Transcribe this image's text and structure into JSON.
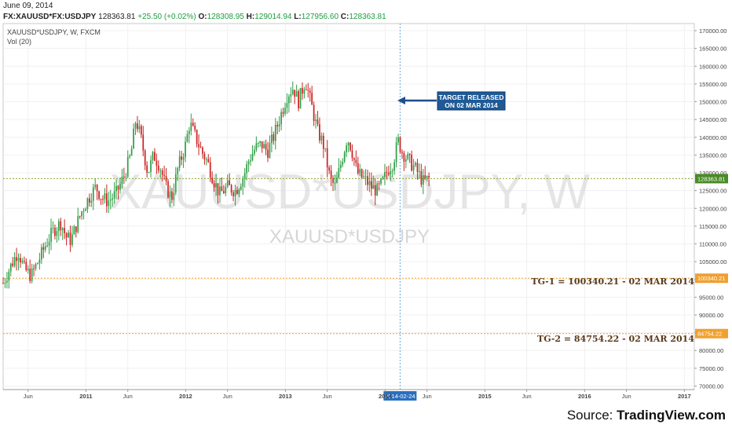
{
  "header": {
    "date": "June 09, 2014",
    "symbol": "FX:XAUUSD*FX:USDJPY",
    "last": "128363.81",
    "change": "+25.50 (+0.02%)",
    "open_label": "O:",
    "open": "128308.95",
    "high_label": "H:",
    "high": "129014.94",
    "low_label": "L:",
    "low": "127956.60",
    "close_label": "C:",
    "close": "128363.81"
  },
  "pane": {
    "title": "XAUUSD*USDJPY, W, FXCM",
    "volume_label": "Vol (20)",
    "watermark_large": "XAUUSD*USDJPY, W",
    "watermark_small": "XAUUSD*USDJPY"
  },
  "annotations": {
    "target_line1": "TARGET RELEASED",
    "target_line2": "ON 02 MAR 2014",
    "tg1": "TG-1 = 100340.21 - 02 MAR 2014",
    "tg2": "TG-2 = 84754.22 - 02 MAR 2014",
    "crosshair_date": "2014-02-24"
  },
  "source": {
    "prefix": "Source: ",
    "name": "TradingView.com"
  },
  "colors": {
    "up": "#2e9e45",
    "down": "#cc2222",
    "price_line": "#8aa832",
    "target_line": "#f0a030",
    "target_label_bg": "#f0a030",
    "crosshair": "#6aa8d8",
    "arrow": "#1f4e8c",
    "box_bg": "#1f5a96",
    "price_label_bg": "#4a8a28"
  },
  "chart_data": {
    "type": "candlestick",
    "interval": "weekly",
    "y_axis": {
      "ticks": [
        70000,
        75000,
        80000,
        85000,
        90000,
        95000,
        100000,
        105000,
        110000,
        115000,
        120000,
        125000,
        130000,
        135000,
        140000,
        145000,
        150000,
        155000,
        160000,
        165000,
        170000
      ],
      "tick_labels": [
        "70000.00",
        "75000.00",
        "80000.00",
        "85000.00",
        "90000.00",
        "95000.00",
        "100000.00",
        "105000.00",
        "110000.00",
        "115000.00",
        "120000.00",
        "125000.00",
        "130000.00",
        "135000.00",
        "140000.00",
        "145000.00",
        "150000.00",
        "155000.00",
        "160000.00",
        "165000.00",
        "170000.00"
      ],
      "range": [
        69000,
        172000
      ],
      "position": "right"
    },
    "x_axis": {
      "ticks": [
        "Jun",
        "2011",
        "Jun",
        "2012",
        "Jun",
        "2013",
        "Jun",
        "2014",
        "Jun",
        "2015",
        "Jun",
        "2016",
        "Jun",
        "2017"
      ],
      "tick_times": [
        2010.42,
        2011.0,
        2011.42,
        2012.0,
        2012.42,
        2013.0,
        2013.42,
        2014.0,
        2014.42,
        2015.0,
        2015.42,
        2016.0,
        2016.42,
        2017.0
      ],
      "range": [
        2010.17,
        2017.1
      ]
    },
    "current_price": {
      "value": 128363.81,
      "label": "128363.81"
    },
    "horizontal_lines": [
      {
        "name": "TG-1",
        "value": 100340.21,
        "label": "100340.21"
      },
      {
        "name": "TG-2",
        "value": 84754.22,
        "label": "84754.22"
      }
    ],
    "vertical_marker": {
      "time": 2014.15,
      "label": "2014-02-24"
    },
    "price_path": [
      [
        2010.17,
        99000
      ],
      [
        2010.25,
        104000
      ],
      [
        2010.32,
        108000
      ],
      [
        2010.38,
        103000
      ],
      [
        2010.45,
        101000
      ],
      [
        2010.52,
        105000
      ],
      [
        2010.6,
        110000
      ],
      [
        2010.68,
        114000
      ],
      [
        2010.75,
        116000
      ],
      [
        2010.8,
        112000
      ],
      [
        2010.85,
        111000
      ],
      [
        2010.9,
        115000
      ],
      [
        2010.97,
        120000
      ],
      [
        2011.05,
        124000
      ],
      [
        2011.1,
        126000
      ],
      [
        2011.16,
        123000
      ],
      [
        2011.22,
        122000
      ],
      [
        2011.3,
        124000
      ],
      [
        2011.38,
        129000
      ],
      [
        2011.45,
        135000
      ],
      [
        2011.5,
        145000
      ],
      [
        2011.55,
        140000
      ],
      [
        2011.62,
        130000
      ],
      [
        2011.68,
        135000
      ],
      [
        2011.74,
        132000
      ],
      [
        2011.8,
        126000
      ],
      [
        2011.86,
        123000
      ],
      [
        2011.92,
        131000
      ],
      [
        2012.0,
        138000
      ],
      [
        2012.04,
        144000
      ],
      [
        2012.1,
        140000
      ],
      [
        2012.16,
        136000
      ],
      [
        2012.22,
        133000
      ],
      [
        2012.28,
        128000
      ],
      [
        2012.34,
        124000
      ],
      [
        2012.42,
        126000
      ],
      [
        2012.5,
        125000
      ],
      [
        2012.58,
        129000
      ],
      [
        2012.64,
        134000
      ],
      [
        2012.7,
        137000
      ],
      [
        2012.76,
        138000
      ],
      [
        2012.82,
        136000
      ],
      [
        2012.88,
        140000
      ],
      [
        2012.95,
        146000
      ],
      [
        2013.02,
        152000
      ],
      [
        2013.08,
        154000
      ],
      [
        2013.13,
        150000
      ],
      [
        2013.2,
        156000
      ],
      [
        2013.27,
        148000
      ],
      [
        2013.32,
        142000
      ],
      [
        2013.38,
        138000
      ],
      [
        2013.45,
        128000
      ],
      [
        2013.5,
        126000
      ],
      [
        2013.56,
        133000
      ],
      [
        2013.62,
        140000
      ],
      [
        2013.66,
        137000
      ],
      [
        2013.72,
        130000
      ],
      [
        2013.8,
        128000
      ],
      [
        2013.86,
        126000
      ],
      [
        2013.92,
        125000
      ],
      [
        2013.97,
        127000
      ],
      [
        2014.03,
        131000
      ],
      [
        2014.08,
        133000
      ],
      [
        2014.13,
        139000
      ],
      [
        2014.17,
        136000
      ],
      [
        2014.22,
        134000
      ],
      [
        2014.28,
        132000
      ],
      [
        2014.33,
        130000
      ],
      [
        2014.38,
        127500
      ],
      [
        2014.44,
        128364
      ]
    ],
    "volume_panel": {
      "label": "Vol (20)"
    }
  }
}
